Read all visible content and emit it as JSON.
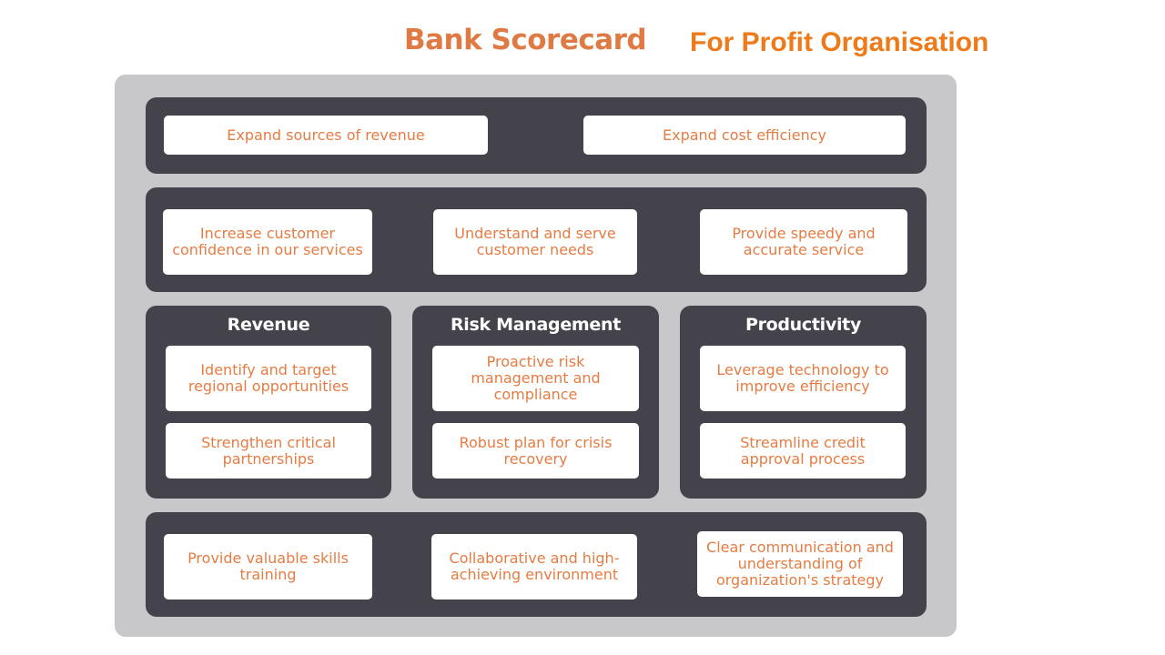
{
  "title": "Bank Scorecard",
  "subtitle": "For Profit Organisation",
  "financial_row": {
    "items": [
      "Expand sources of revenue",
      "Expand cost efficiency"
    ]
  },
  "customer_row": {
    "items": [
      "Increase customer confidence in our services",
      "Understand and serve customer needs",
      "Provide speedy and accurate service"
    ]
  },
  "process_columns": [
    {
      "heading": "Revenue",
      "items": [
        "Identify and target regional opportunities",
        "Strengthen critical partnerships"
      ]
    },
    {
      "heading": "Risk Management",
      "items": [
        "Proactive risk management and compliance",
        "Robust plan for crisis recovery"
      ]
    },
    {
      "heading": "Productivity",
      "items": [
        "Leverage technology to improve efficiency",
        "Streamline credit approval process"
      ]
    }
  ],
  "learning_row": {
    "items": [
      "Provide valuable skills training",
      "Collaborative and high-achieving environment",
      "Clear communication and understanding of organization's strategy"
    ]
  },
  "colors": {
    "accent_orange": "#e47c44",
    "panel_dark": "#44434b",
    "frame_gray": "#c8c8ca"
  }
}
